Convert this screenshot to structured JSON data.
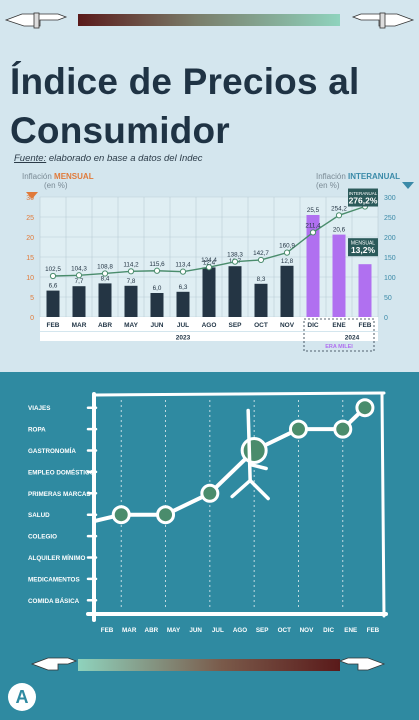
{
  "title": {
    "line1": "Índice de Precios al",
    "line2": "Consumidor"
  },
  "source": {
    "label": "Fuente:",
    "text": " elaborado en base a datos del Indec"
  },
  "left_axis_title": {
    "line1_prefix": "Inflación ",
    "line1_strong": "MENSUAL",
    "line2": "(en %)"
  },
  "right_axis_title": {
    "line1_prefix": "Inflación ",
    "line1_strong": "INTERANUAL",
    "line2": "(en %)"
  },
  "colors": {
    "bar_dark": "#243544",
    "bar_purple": "#b070f0",
    "line": "#4a8c6c",
    "mensual": "#e07a3a",
    "interanual": "#3a8aa8",
    "grid": "#b9ccd5"
  },
  "chart_data": [
    {
      "type": "bar",
      "categories": [
        "FEB",
        "MAR",
        "ABR",
        "MAY",
        "JUN",
        "JUL",
        "AGO",
        "SEP",
        "OCT",
        "NOV",
        "DIC",
        "ENE",
        "FEB"
      ],
      "year_groups": [
        {
          "label": "2023",
          "from": 0,
          "to": 10
        },
        {
          "label": "2024",
          "from": 11,
          "to": 12
        }
      ],
      "era_label": "ERA MILEI",
      "series": [
        {
          "name": "Inflación MENSUAL (en %)",
          "axis": "left",
          "values": [
            6.6,
            7.7,
            8.4,
            7.8,
            6.0,
            6.3,
            12.4,
            12.7,
            8.3,
            12.8,
            25.5,
            20.6,
            13.2
          ],
          "labels": [
            "6,6",
            "7,7",
            "8,4",
            "7,8",
            "6,0",
            "6,3",
            "12,4",
            "12,7",
            "8,3",
            "12,8",
            "25,5",
            "20,6",
            ""
          ]
        },
        {
          "name": "Inflación INTERANUAL (en %)",
          "axis": "right",
          "type": "line",
          "values": [
            102.5,
            104.3,
            108.8,
            114.2,
            115.6,
            113.4,
            124.4,
            138.3,
            142.7,
            160.9,
            211.4,
            254.2,
            276.2
          ],
          "labels": [
            "102,5",
            "104,3",
            "108,8",
            "114,2",
            "115,6",
            "113,4",
            "124,4",
            "138,3",
            "142,7",
            "160,9",
            "211,4",
            "254,2",
            ""
          ]
        }
      ],
      "callouts": {
        "interanual": {
          "label": "INTERANUAL",
          "value": "276,2%"
        },
        "mensual": {
          "label": "MENSUAL",
          "value": "13,2%"
        }
      },
      "ylim_left": [
        0,
        30
      ],
      "yticks_left": [
        0,
        5,
        10,
        15,
        20,
        25,
        30
      ],
      "ylim_right": [
        0,
        300
      ],
      "yticks_right": [
        0,
        50,
        100,
        150,
        200,
        250,
        300
      ],
      "grid": true
    },
    {
      "type": "line",
      "x": [
        "FEB",
        "MAR",
        "ABR",
        "MAY",
        "JUN",
        "JUL",
        "AGO",
        "SEP",
        "OCT",
        "NOV",
        "DIC",
        "ENE",
        "FEB"
      ],
      "y_categories": [
        "COMIDA BÁSICA",
        "MEDICAMENTOS",
        "ALQUILER MÍNIMO",
        "COLEGIO",
        "SALUD",
        "PRIMERAS MARCAS",
        "EMPLEO DOMÉSTICO",
        "GASTRONOMÍA",
        "ROPA",
        "VIAJES"
      ],
      "points": [
        {
          "x": "MAR",
          "y": "SALUD"
        },
        {
          "x": "MAY",
          "y": "SALUD"
        },
        {
          "x": "JUL",
          "y": "PRIMERAS MARCAS"
        },
        {
          "x": "SEP",
          "y": "GASTRONOMÍA"
        },
        {
          "x": "NOV",
          "y": "ROPA"
        },
        {
          "x": "ENE",
          "y": "ROPA"
        },
        {
          "x": "FEB",
          "y": "VIAJES"
        }
      ],
      "grid": true
    }
  ]
}
